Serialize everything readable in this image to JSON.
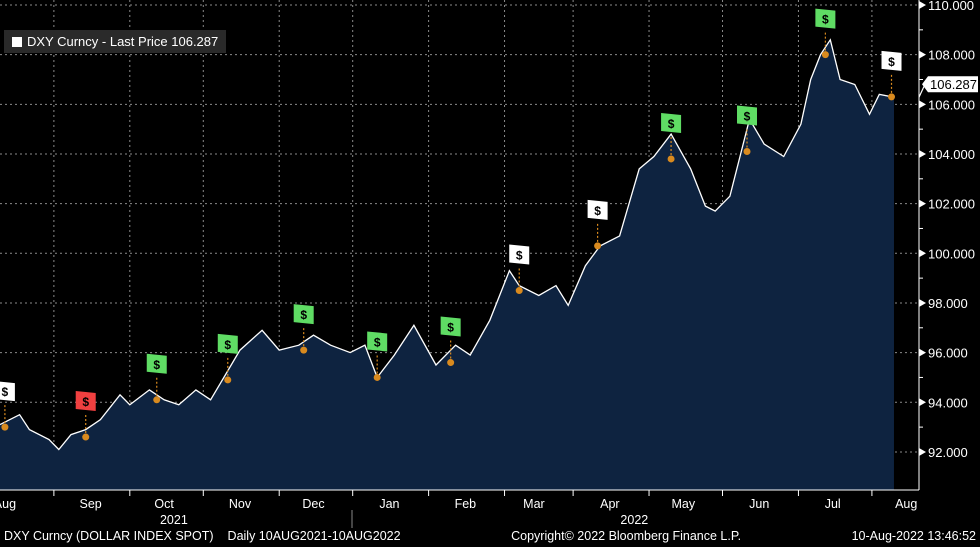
{
  "chart_data": {
    "type": "area",
    "title": "DXY Curncy - Last Price 106.287",
    "legend": {
      "label": "DXY Curncy - Last Price 106.287",
      "placement": "top-left"
    },
    "last_price_label": "106.287",
    "last_price": 106.287,
    "ylim": [
      90.5,
      110.2
    ],
    "yticks": [
      "92.000",
      "94.000",
      "96.000",
      "98.000",
      "100.000",
      "102.000",
      "104.000",
      "106.000",
      "108.000",
      "110.000"
    ],
    "ytick_values": [
      92,
      94,
      96,
      98,
      100,
      102,
      104,
      106,
      108,
      110
    ],
    "xlim_days": [
      0,
      374
    ],
    "month_ticks_days": [
      22,
      53,
      83,
      114,
      144,
      175,
      206,
      234,
      265,
      295,
      326,
      356
    ],
    "month_labels": [
      {
        "label": "Aug",
        "day": 2
      },
      {
        "label": "Sep",
        "day": 37
      },
      {
        "label": "Oct",
        "day": 67
      },
      {
        "label": "Nov",
        "day": 98
      },
      {
        "label": "Dec",
        "day": 128
      },
      {
        "label": "Jan",
        "day": 159
      },
      {
        "label": "Feb",
        "day": 190
      },
      {
        "label": "Mar",
        "day": 218
      },
      {
        "label": "Apr",
        "day": 249
      },
      {
        "label": "May",
        "day": 279
      },
      {
        "label": "Jun",
        "day": 310
      },
      {
        "label": "Jul",
        "day": 340
      },
      {
        "label": "Aug",
        "day": 370
      }
    ],
    "year_labels": [
      {
        "label": "2021",
        "day": 71
      },
      {
        "label": "2022",
        "day": 259
      }
    ],
    "series": [
      {
        "name": "DXY Curncy",
        "days": [
          0,
          8,
          12,
          20,
          24,
          29,
          35,
          41,
          49,
          53,
          61,
          67,
          73,
          80,
          86,
          92,
          98,
          107,
          114,
          122,
          128,
          135,
          143,
          149,
          154,
          161,
          169,
          178,
          186,
          192,
          200,
          208,
          212,
          220,
          227,
          232,
          239,
          245,
          253,
          261,
          267,
          274,
          282,
          288,
          292,
          298,
          306,
          312,
          320,
          327,
          331,
          335,
          339,
          343,
          349,
          355,
          359,
          365
        ],
        "values": [
          93.1,
          93.5,
          92.9,
          92.5,
          92.1,
          92.7,
          92.9,
          93.3,
          94.3,
          93.9,
          94.5,
          94.1,
          93.9,
          94.5,
          94.1,
          95.1,
          96.1,
          96.9,
          96.1,
          96.3,
          96.7,
          96.3,
          96.0,
          96.3,
          95.0,
          95.9,
          97.1,
          95.5,
          96.3,
          95.9,
          97.3,
          99.3,
          98.7,
          98.3,
          98.7,
          97.9,
          99.5,
          100.3,
          100.7,
          103.4,
          103.9,
          104.8,
          103.4,
          101.9,
          101.7,
          102.3,
          105.4,
          104.4,
          103.9,
          105.2,
          107.0,
          108.0,
          108.6,
          107.0,
          106.8,
          105.6,
          106.4,
          106.287
        ]
      }
    ],
    "event_flags": [
      {
        "day": 2,
        "value": 93.0,
        "color": "#ffffff",
        "symbol": "$"
      },
      {
        "day": 35,
        "value": 92.6,
        "color": "#f04040",
        "symbol": "$"
      },
      {
        "day": 64,
        "value": 94.1,
        "color": "#5fdc64",
        "symbol": "$"
      },
      {
        "day": 93,
        "value": 94.9,
        "color": "#5fdc64",
        "symbol": "$"
      },
      {
        "day": 124,
        "value": 96.1,
        "color": "#5fdc64",
        "symbol": "$"
      },
      {
        "day": 154,
        "value": 95.0,
        "color": "#5fdc64",
        "symbol": "$"
      },
      {
        "day": 184,
        "value": 95.6,
        "color": "#5fdc64",
        "symbol": "$"
      },
      {
        "day": 212,
        "value": 98.5,
        "color": "#ffffff",
        "symbol": "$"
      },
      {
        "day": 244,
        "value": 100.3,
        "color": "#ffffff",
        "symbol": "$"
      },
      {
        "day": 274,
        "value": 103.8,
        "color": "#5fdc64",
        "symbol": "$"
      },
      {
        "day": 305,
        "value": 104.1,
        "color": "#5fdc64",
        "symbol": "$"
      },
      {
        "day": 337,
        "value": 108.0,
        "color": "#5fdc64",
        "symbol": "$"
      },
      {
        "day": 364,
        "value": 106.3,
        "color": "#ffffff",
        "symbol": "$"
      }
    ],
    "colors": {
      "line": "#ffffff",
      "fill": "#0e2340",
      "axis_text": "#ffffff",
      "grid": "#8a8a8a",
      "marker": "#d98a1e"
    }
  },
  "footer": {
    "security": "DXY Curncy (DOLLAR INDEX SPOT)",
    "range": "Daily 10AUG2021-10AUG2022",
    "copyright": "Copyright© 2022 Bloomberg Finance L.P.",
    "timestamp": "10-Aug-2022 13:46:52"
  }
}
